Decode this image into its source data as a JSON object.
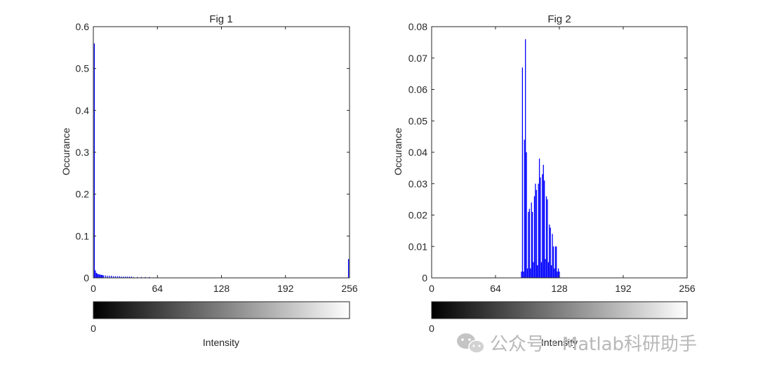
{
  "chart_data": [
    {
      "type": "bar",
      "title": "Fig 1",
      "xlabel": "",
      "ylabel": "Occurance",
      "xlim": [
        0,
        256
      ],
      "ylim": [
        0,
        0.6
      ],
      "x_ticks": [
        "0",
        "64",
        "128",
        "192",
        "256"
      ],
      "y_ticks": [
        "0",
        "0.1",
        "0.2",
        "0.3",
        "0.4",
        "0.5",
        "0.6"
      ],
      "colorbar": {
        "ticks": [
          "0"
        ],
        "label": "Intensity"
      },
      "bar_color": "#0000ff",
      "values": [
        [
          1,
          0.56
        ],
        [
          2,
          0.018
        ],
        [
          3,
          0.012
        ],
        [
          4,
          0.01
        ],
        [
          5,
          0.009
        ],
        [
          6,
          0.008
        ],
        [
          7,
          0.008
        ],
        [
          8,
          0.007
        ],
        [
          9,
          0.007
        ],
        [
          10,
          0.006
        ],
        [
          12,
          0.006
        ],
        [
          14,
          0.005
        ],
        [
          16,
          0.005
        ],
        [
          18,
          0.005
        ],
        [
          20,
          0.004
        ],
        [
          22,
          0.004
        ],
        [
          24,
          0.004
        ],
        [
          26,
          0.004
        ],
        [
          28,
          0.003
        ],
        [
          30,
          0.003
        ],
        [
          32,
          0.003
        ],
        [
          34,
          0.003
        ],
        [
          36,
          0.003
        ],
        [
          38,
          0.003
        ],
        [
          40,
          0.002
        ],
        [
          44,
          0.002
        ],
        [
          48,
          0.002
        ],
        [
          52,
          0.002
        ],
        [
          56,
          0.002
        ],
        [
          60,
          0.001
        ],
        [
          64,
          0.001
        ],
        [
          72,
          0.001
        ],
        [
          80,
          0.001
        ],
        [
          88,
          0.001
        ],
        [
          96,
          0.001
        ],
        [
          104,
          0.001
        ],
        [
          112,
          0.001
        ],
        [
          120,
          0.001
        ],
        [
          128,
          0.001
        ],
        [
          136,
          0.001
        ],
        [
          144,
          0.001
        ],
        [
          152,
          0.001
        ],
        [
          160,
          0.001
        ],
        [
          168,
          0.001
        ],
        [
          176,
          0.001
        ],
        [
          184,
          0.001
        ],
        [
          192,
          0.001
        ],
        [
          200,
          0.001
        ],
        [
          208,
          0.001
        ],
        [
          216,
          0.001
        ],
        [
          224,
          0.001
        ],
        [
          232,
          0.001
        ],
        [
          240,
          0.001
        ],
        [
          248,
          0.001
        ],
        [
          255,
          0.045
        ]
      ]
    },
    {
      "type": "bar",
      "title": "Fig 2",
      "xlabel": "",
      "ylabel": "Occurance",
      "xlim": [
        0,
        256
      ],
      "ylim": [
        0,
        0.08
      ],
      "x_ticks": [
        "0",
        "64",
        "128",
        "192",
        "256"
      ],
      "y_ticks": [
        "0",
        "0.01",
        "0.02",
        "0.03",
        "0.04",
        "0.05",
        "0.06",
        "0.07",
        "0.08"
      ],
      "colorbar": {
        "ticks": [
          "0"
        ],
        "label": "Intensity"
      },
      "bar_color": "#0000ff",
      "values": [
        [
          90,
          0.002
        ],
        [
          91,
          0.067
        ],
        [
          92,
          0.002
        ],
        [
          93,
          0.044
        ],
        [
          94,
          0.076
        ],
        [
          95,
          0.04
        ],
        [
          96,
          0.003
        ],
        [
          97,
          0.021
        ],
        [
          98,
          0.022
        ],
        [
          99,
          0.003
        ],
        [
          100,
          0.024
        ],
        [
          101,
          0.021
        ],
        [
          102,
          0.005
        ],
        [
          103,
          0.026
        ],
        [
          104,
          0.03
        ],
        [
          105,
          0.028
        ],
        [
          106,
          0.004
        ],
        [
          107,
          0.03
        ],
        [
          108,
          0.038
        ],
        [
          109,
          0.032
        ],
        [
          110,
          0.005
        ],
        [
          111,
          0.033
        ],
        [
          112,
          0.036
        ],
        [
          113,
          0.031
        ],
        [
          114,
          0.006
        ],
        [
          115,
          0.026
        ],
        [
          116,
          0.025
        ],
        [
          117,
          0.005
        ],
        [
          118,
          0.017
        ],
        [
          119,
          0.016
        ],
        [
          120,
          0.004
        ],
        [
          121,
          0.014
        ],
        [
          122,
          0.01
        ],
        [
          123,
          0.003
        ],
        [
          124,
          0.01
        ],
        [
          125,
          0.01
        ],
        [
          126,
          0.002
        ],
        [
          127,
          0.003
        ],
        [
          128,
          0.002
        ]
      ]
    }
  ],
  "watermark": {
    "text": "公众号 · Matlab科研助手",
    "icon": "wechat-icon"
  }
}
